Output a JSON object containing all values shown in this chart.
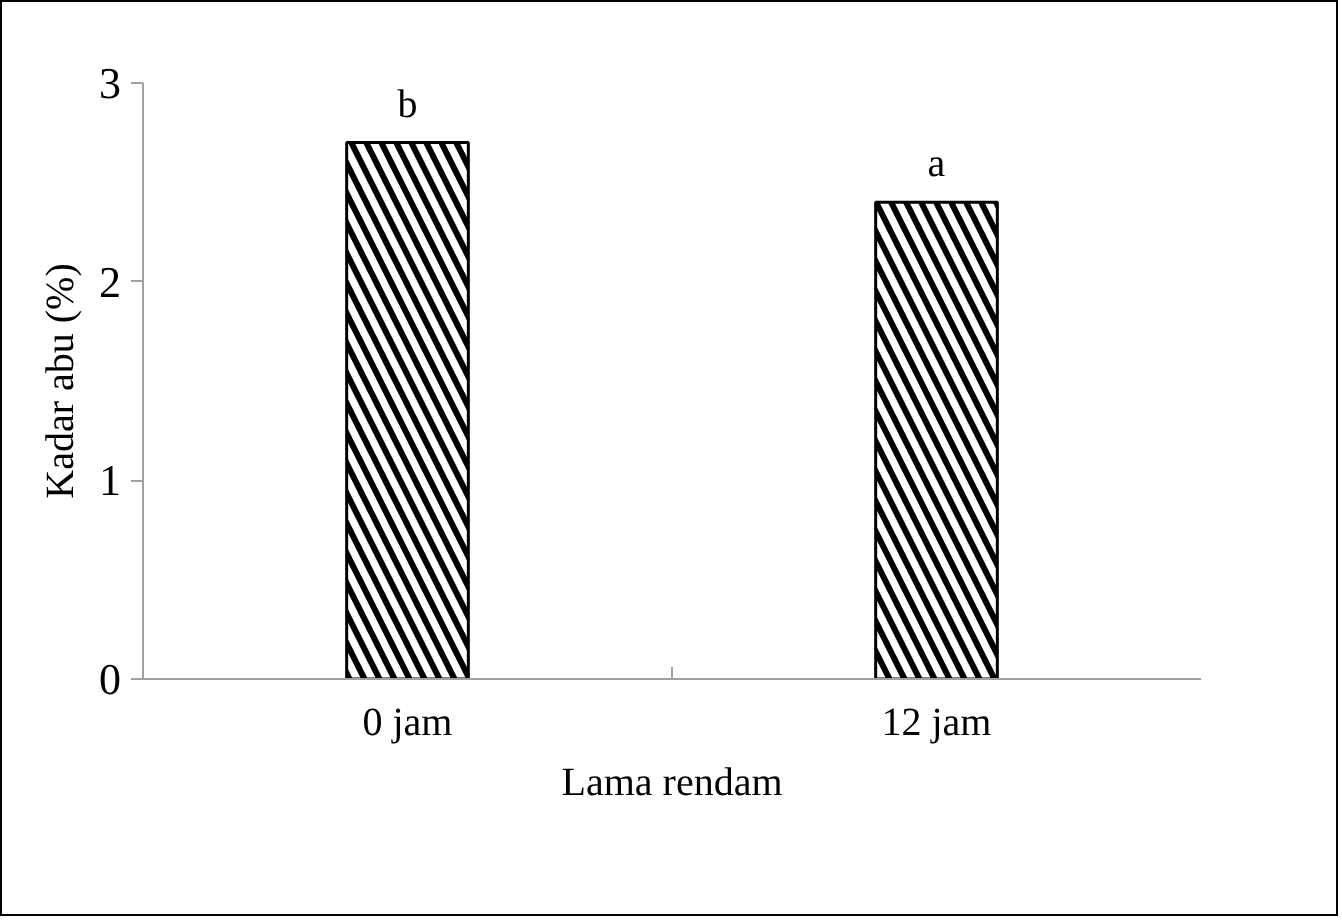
{
  "chart_data": {
    "type": "bar",
    "xlabel": "Lama rendam",
    "ylabel": "Kadar abu (%)",
    "categories": [
      "0 jam",
      "12 jam"
    ],
    "values": [
      2.7,
      2.4
    ],
    "color": "#000000",
    "ylim": [
      0,
      3
    ],
    "yticks": [
      0,
      1,
      2,
      3
    ],
    "grid": false,
    "annotations": [
      {
        "text": "b",
        "x": "0 jam",
        "y": 2.7
      },
      {
        "text": "a",
        "x": "12 jam",
        "y": 2.4
      }
    ]
  }
}
